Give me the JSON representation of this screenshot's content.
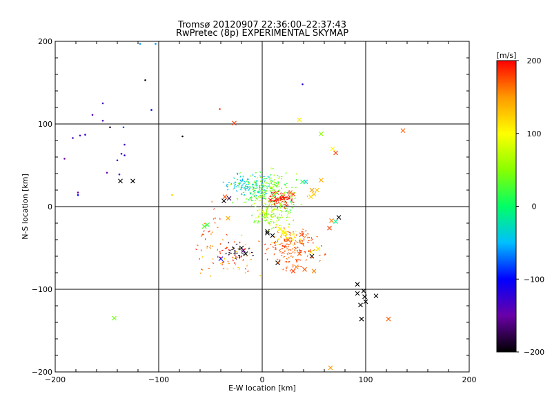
{
  "chart_data": {
    "type": "scatter",
    "title": "Tromsø 20120907 22:36:00–22:37:43",
    "subtitle": "RwPretec (8p) EXPERIMENTAL SKYMAP",
    "xlabel": "E-W location [km]",
    "ylabel": "N-S location [km]",
    "xlim": [
      -200,
      200
    ],
    "ylim": [
      -200,
      200
    ],
    "xticks": [
      -200,
      -100,
      0,
      100,
      200
    ],
    "yticks": [
      -200,
      -100,
      0,
      100,
      200
    ],
    "x_tick_labels": [
      "−200",
      "−100",
      "0",
      "100",
      "200"
    ],
    "y_tick_labels": [
      "−200",
      "−100",
      "0",
      "100",
      "200"
    ],
    "grid_lines": [
      -100,
      0,
      100
    ],
    "grid": true,
    "colorbar": {
      "label": "[m/s]",
      "range": [
        -200,
        200
      ],
      "ticks": [
        200,
        100,
        0,
        -100,
        -200
      ],
      "tick_labels": [
        "200",
        "100",
        "0",
        "−100",
        "−200"
      ],
      "colormap": [
        "#000000",
        "#6a00a8",
        "#0000ff",
        "#00bfff",
        "#00ff66",
        "#88ff00",
        "#ffff00",
        "#ff9900",
        "#ff0000"
      ]
    },
    "series": [
      {
        "marker": "x",
        "points": [
          {
            "x": -137,
            "y": 31,
            "v": -200
          },
          {
            "x": -125,
            "y": 31,
            "v": -200
          },
          {
            "x": -27,
            "y": 101,
            "v": 180
          },
          {
            "x": 36,
            "y": 105,
            "v": 110
          },
          {
            "x": 71,
            "y": 65,
            "v": 180
          },
          {
            "x": 68,
            "y": 70,
            "v": 100
          },
          {
            "x": 57,
            "y": 88,
            "v": 50
          },
          {
            "x": 136,
            "y": 92,
            "v": 170
          },
          {
            "x": 42,
            "y": 30,
            "v": -40
          },
          {
            "x": 57,
            "y": 32,
            "v": 140
          },
          {
            "x": 50,
            "y": 15,
            "v": 130
          },
          {
            "x": 48,
            "y": 20,
            "v": 150
          },
          {
            "x": 53,
            "y": 20,
            "v": 130
          },
          {
            "x": 47,
            "y": 12,
            "v": 120
          },
          {
            "x": 74,
            "y": -13,
            "v": -200
          },
          {
            "x": 67,
            "y": -17,
            "v": 160
          },
          {
            "x": 65,
            "y": -26,
            "v": 180
          },
          {
            "x": 71,
            "y": -18,
            "v": -10
          },
          {
            "x": -37,
            "y": 7,
            "v": -200
          },
          {
            "x": -32,
            "y": 10,
            "v": -180
          },
          {
            "x": -36,
            "y": 12,
            "v": 180
          },
          {
            "x": -33,
            "y": -14,
            "v": 140
          },
          {
            "x": -53,
            "y": -22,
            "v": 20
          },
          {
            "x": -56,
            "y": -24,
            "v": 30
          },
          {
            "x": -40,
            "y": -63,
            "v": -100
          },
          {
            "x": -20,
            "y": -50,
            "v": -200
          },
          {
            "x": -16,
            "y": -57,
            "v": -200
          },
          {
            "x": -18,
            "y": -53,
            "v": -150
          },
          {
            "x": 5,
            "y": -32,
            "v": -200
          },
          {
            "x": 10,
            "y": -35,
            "v": -200
          },
          {
            "x": 15,
            "y": -68,
            "v": -200
          },
          {
            "x": 20,
            "y": 12,
            "v": 190
          },
          {
            "x": 14,
            "y": 17,
            "v": 180
          },
          {
            "x": 8,
            "y": 8,
            "v": 185
          },
          {
            "x": 27,
            "y": 17,
            "v": 170
          },
          {
            "x": 30,
            "y": 15,
            "v": 180
          },
          {
            "x": 25,
            "y": -40,
            "v": 170
          },
          {
            "x": 38,
            "y": -34,
            "v": 180
          },
          {
            "x": 36,
            "y": -57,
            "v": 170
          },
          {
            "x": 47,
            "y": -55,
            "v": 110
          },
          {
            "x": 54,
            "y": -51,
            "v": 110
          },
          {
            "x": 48,
            "y": -60,
            "v": -200
          },
          {
            "x": 33,
            "y": -73,
            "v": 160
          },
          {
            "x": 41,
            "y": -76,
            "v": 170
          },
          {
            "x": 50,
            "y": -78,
            "v": 160
          },
          {
            "x": 30,
            "y": -78,
            "v": 180
          },
          {
            "x": 92,
            "y": -94,
            "v": -200
          },
          {
            "x": 92,
            "y": -105,
            "v": -200
          },
          {
            "x": 98,
            "y": -102,
            "v": -200
          },
          {
            "x": 99,
            "y": -109,
            "v": -200
          },
          {
            "x": 95,
            "y": -119,
            "v": -200
          },
          {
            "x": 100,
            "y": -115,
            "v": -200
          },
          {
            "x": 110,
            "y": -108,
            "v": -200
          },
          {
            "x": 96,
            "y": -136,
            "v": -200
          },
          {
            "x": 122,
            "y": -136,
            "v": 170
          },
          {
            "x": -143,
            "y": -135,
            "v": 40
          },
          {
            "x": 66,
            "y": -195,
            "v": 150
          },
          {
            "x": 5,
            "y": -30,
            "v": -200
          },
          {
            "x": 20,
            "y": -30,
            "v": 100
          },
          {
            "x": 22,
            "y": -32,
            "v": 110
          },
          {
            "x": 17,
            "y": -27,
            "v": 95
          },
          {
            "x": 39,
            "y": 30,
            "v": 10
          }
        ]
      },
      {
        "marker": "dot",
        "points": [
          {
            "x": -191,
            "y": 58,
            "v": -150
          },
          {
            "x": -183,
            "y": 83,
            "v": -140
          },
          {
            "x": -176,
            "y": 86,
            "v": -130
          },
          {
            "x": -171,
            "y": 87,
            "v": -120
          },
          {
            "x": -164,
            "y": 111,
            "v": -140
          },
          {
            "x": -154,
            "y": 125,
            "v": -130
          },
          {
            "x": -154,
            "y": 104,
            "v": -140
          },
          {
            "x": -147,
            "y": 96,
            "v": -190
          },
          {
            "x": -134,
            "y": 96,
            "v": -80
          },
          {
            "x": -118,
            "y": 197,
            "v": -60
          },
          {
            "x": -113,
            "y": 153,
            "v": -200
          },
          {
            "x": -107,
            "y": 117,
            "v": -100
          },
          {
            "x": -150,
            "y": 41,
            "v": -150
          },
          {
            "x": -138,
            "y": 39,
            "v": -130
          },
          {
            "x": -140,
            "y": 56,
            "v": -120
          },
          {
            "x": -133,
            "y": 62,
            "v": -120
          },
          {
            "x": -133,
            "y": 75,
            "v": -130
          },
          {
            "x": -136,
            "y": 64,
            "v": -140
          },
          {
            "x": -178,
            "y": 17,
            "v": -150
          },
          {
            "x": -178,
            "y": 14,
            "v": -100
          },
          {
            "x": -77,
            "y": 85,
            "v": -200
          },
          {
            "x": -41,
            "y": 118,
            "v": 180
          },
          {
            "x": -87,
            "y": 14,
            "v": 120
          },
          {
            "x": 39,
            "y": 148,
            "v": -120
          },
          {
            "x": -103,
            "y": 197,
            "v": -60
          }
        ]
      }
    ]
  }
}
